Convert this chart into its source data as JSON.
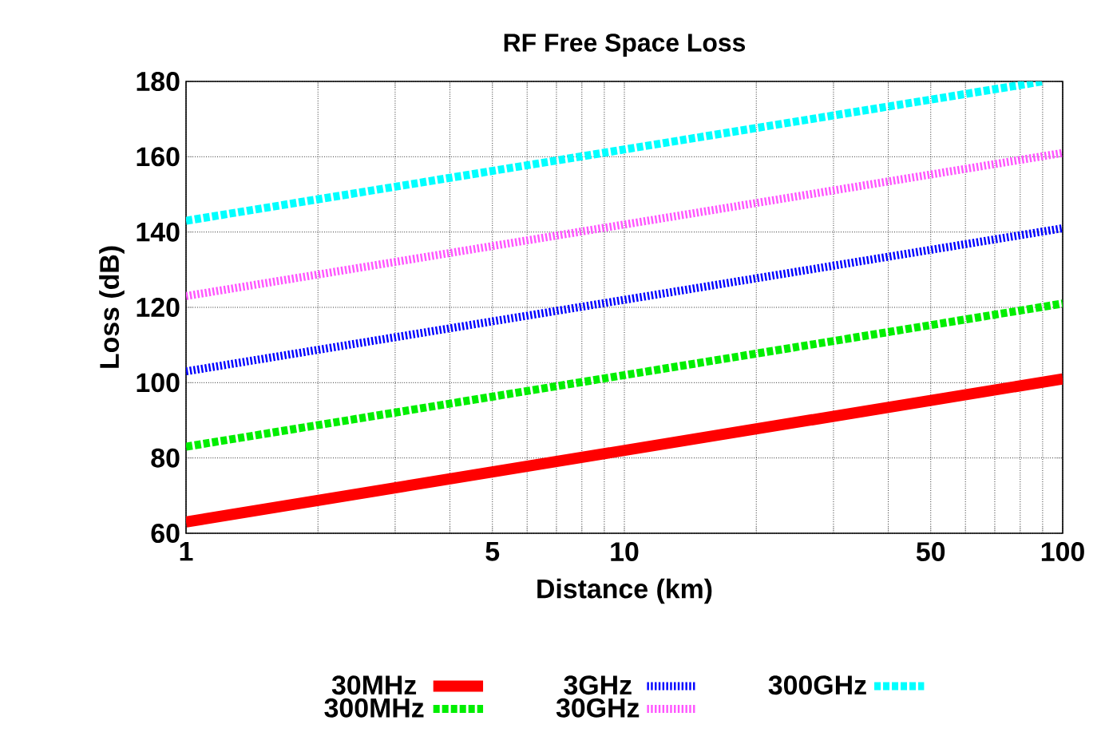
{
  "chart_data": {
    "type": "line",
    "title": "RF Free Space Loss",
    "xlabel": "Distance (km)",
    "ylabel": "Loss (dB)",
    "log": "x",
    "xlim": [
      1,
      100
    ],
    "ylim": [
      60,
      180
    ],
    "xticks": [
      1,
      {
        "value": 2,
        "label": null
      },
      {
        "value": 3,
        "label": null
      },
      {
        "value": 4,
        "label": null
      },
      5,
      {
        "value": 6,
        "label": null
      },
      {
        "value": 7,
        "label": null
      },
      {
        "value": 8,
        "label": null
      },
      {
        "value": 9,
        "label": null
      },
      10,
      {
        "value": 20,
        "label": null
      },
      {
        "value": 30,
        "label": null
      },
      {
        "value": 40,
        "label": null
      },
      50,
      {
        "value": 60,
        "label": null
      },
      {
        "value": 70,
        "label": null
      },
      {
        "value": 80,
        "label": null
      },
      {
        "value": 90,
        "label": null
      },
      100
    ],
    "yticks": [
      60,
      80,
      100,
      120,
      140,
      160,
      180
    ],
    "grid": true,
    "legend": "bottom",
    "marker": "none",
    "series": [
      {
        "name": "30MHz",
        "color": "#ff0000",
        "line_style": "solid",
        "x": [
          1,
          100
        ],
        "values": [
          63,
          101
        ]
      },
      {
        "name": "300MHz",
        "color": "#00ee00",
        "line_style": "dashed",
        "x": [
          1,
          100
        ],
        "values": [
          83,
          121
        ]
      },
      {
        "name": "3GHz",
        "color": "#0000ff",
        "line_style": "dotted",
        "x": [
          1,
          100
        ],
        "values": [
          103,
          141
        ]
      },
      {
        "name": "30GHz",
        "color": "#ff55ff",
        "line_style": "dotted",
        "x": [
          1,
          100
        ],
        "values": [
          123,
          161
        ]
      },
      {
        "name": "300GHz",
        "color": "#00ffff",
        "line_style": "dashed",
        "x": [
          1,
          90
        ],
        "values": [
          143,
          180
        ]
      }
    ]
  }
}
